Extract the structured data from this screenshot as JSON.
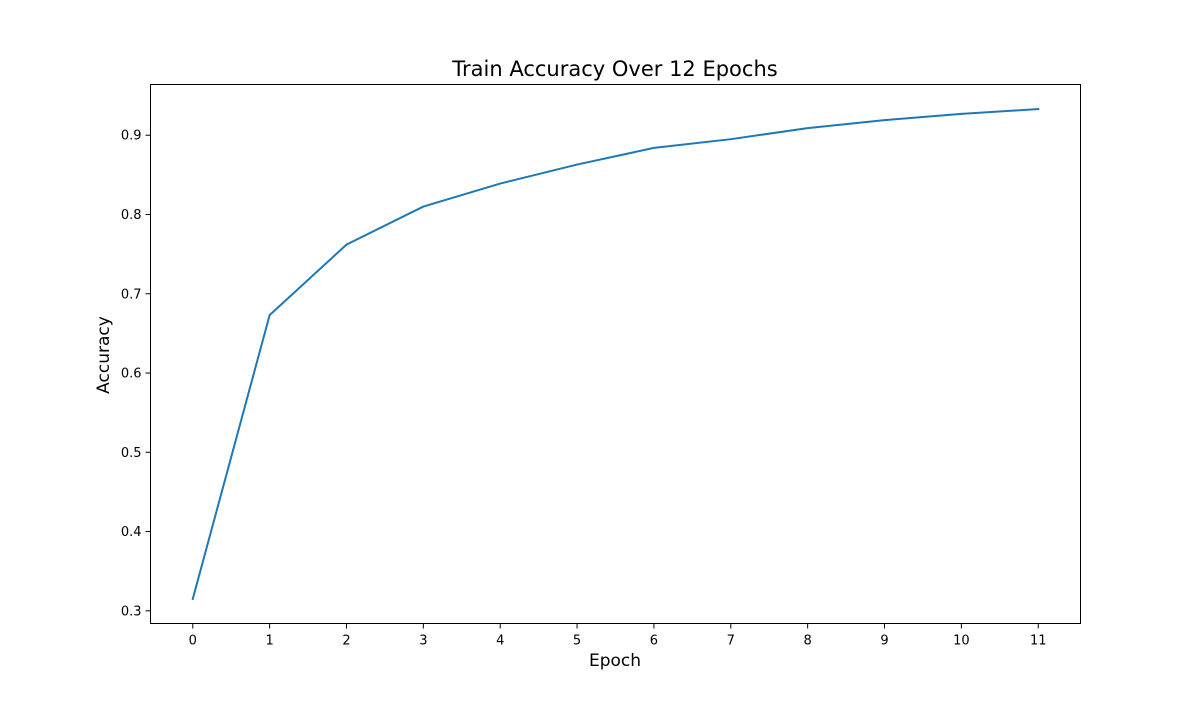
{
  "chart_data": {
    "type": "line",
    "title": "Train Accuracy Over 12 Epochs",
    "xlabel": "Epoch",
    "ylabel": "Accuracy",
    "x": [
      0,
      1,
      2,
      3,
      4,
      5,
      6,
      7,
      8,
      9,
      10,
      11
    ],
    "series": [
      {
        "values": [
          0.315,
          0.673,
          0.762,
          0.81,
          0.839,
          0.863,
          0.884,
          0.895,
          0.909,
          0.919,
          0.927,
          0.933
        ]
      }
    ],
    "xlim": [
      -0.55,
      11.55
    ],
    "ylim": [
      0.284,
      0.964
    ],
    "xticks": [
      "0",
      "1",
      "2",
      "3",
      "4",
      "5",
      "6",
      "7",
      "8",
      "9",
      "10",
      "11"
    ],
    "yticks": [
      "0.3",
      "0.4",
      "0.5",
      "0.6",
      "0.7",
      "0.8",
      "0.9"
    ],
    "ytick_values": [
      0.3,
      0.4,
      0.5,
      0.6,
      0.7,
      0.8,
      0.9
    ],
    "grid": false,
    "line_color": "#1f77b4"
  }
}
